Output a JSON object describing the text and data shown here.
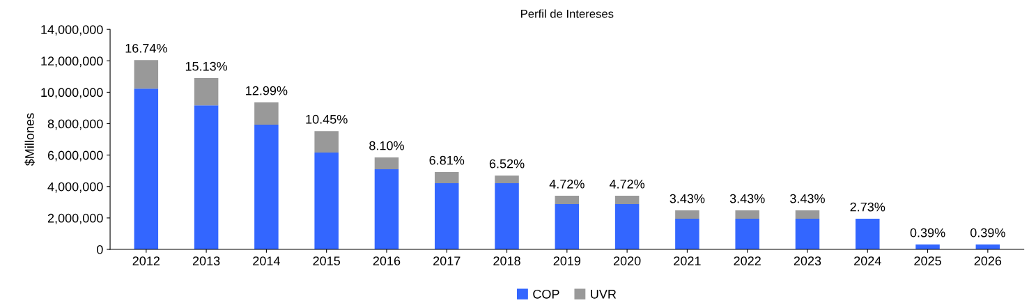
{
  "chart_data": {
    "type": "bar",
    "title": "Perfil de Intereses",
    "ylabel": "$Millones",
    "stacked": true,
    "categories": [
      "2012",
      "2013",
      "2014",
      "2015",
      "2016",
      "2017",
      "2018",
      "2019",
      "2020",
      "2021",
      "2022",
      "2023",
      "2024",
      "2025",
      "2026"
    ],
    "series": [
      {
        "name": "COP",
        "color": "#3366ff",
        "values": [
          10230000,
          9170000,
          7930000,
          6160000,
          5100000,
          4210000,
          4210000,
          2880000,
          2880000,
          1950000,
          1950000,
          1950000,
          1950000,
          310000,
          310000
        ]
      },
      {
        "name": "UVR",
        "color": "#999999",
        "values": [
          1820000,
          1730000,
          1420000,
          1370000,
          750000,
          710000,
          490000,
          530000,
          530000,
          530000,
          530000,
          530000,
          0,
          0,
          0
        ]
      }
    ],
    "ylim": [
      0,
      14000000
    ],
    "yticks": [
      {
        "value": 0,
        "label": "0"
      },
      {
        "value": 2000000,
        "label": "2,000,000"
      },
      {
        "value": 4000000,
        "label": "4,000,000"
      },
      {
        "value": 6000000,
        "label": "6,000,000"
      },
      {
        "value": 8000000,
        "label": "8,000,000"
      },
      {
        "value": 10000000,
        "label": "10,000,000"
      },
      {
        "value": 12000000,
        "label": "12,000,000"
      },
      {
        "value": 14000000,
        "label": "14,000,000"
      }
    ],
    "grid": false,
    "legend": "bottom",
    "annotations": [
      {
        "text": "16.74%",
        "x": "2012",
        "y": 12050000
      },
      {
        "text": "15.13%",
        "x": "2013",
        "y": 10900000
      },
      {
        "text": "12.99%",
        "x": "2014",
        "y": 9350000
      },
      {
        "text": "10.45%",
        "x": "2015",
        "y": 7530000
      },
      {
        "text": "8.10%",
        "x": "2016",
        "y": 5850000
      },
      {
        "text": "6.81%",
        "x": "2017",
        "y": 4920000
      },
      {
        "text": "6.52%",
        "x": "2018",
        "y": 4700000
      },
      {
        "text": "4.72%",
        "x": "2019",
        "y": 3410000
      },
      {
        "text": "4.72%",
        "x": "2020",
        "y": 3410000
      },
      {
        "text": "3.43%",
        "x": "2021",
        "y": 2480000
      },
      {
        "text": "3.43%",
        "x": "2022",
        "y": 2480000
      },
      {
        "text": "3.43%",
        "x": "2023",
        "y": 2480000
      },
      {
        "text": "2.73%",
        "x": "2024",
        "y": 1950000
      },
      {
        "text": "0.39%",
        "x": "2025",
        "y": 310000
      },
      {
        "text": "0.39%",
        "x": "2026",
        "y": 310000
      }
    ]
  }
}
